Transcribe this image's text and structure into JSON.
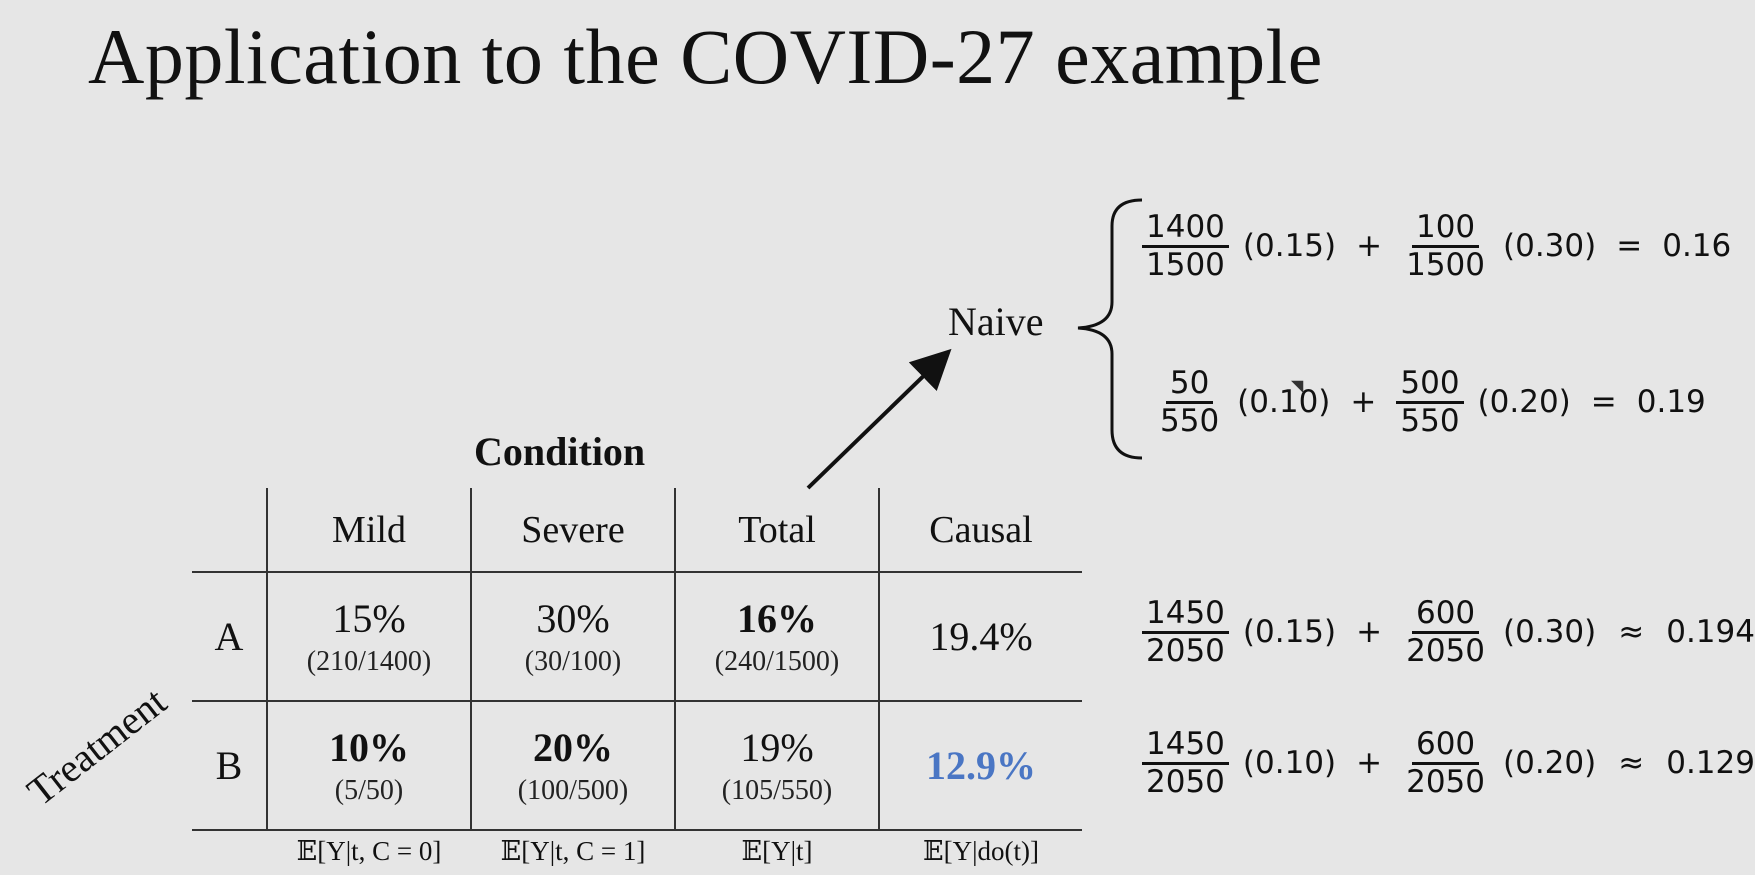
{
  "title": "Application to the COVID-27 example",
  "naive_label": "Naive",
  "naive_equations": [
    {
      "f1_num": "1400",
      "f1_den": "1500",
      "c1": "(0.15)",
      "op": "+",
      "f2_num": "100",
      "f2_den": "1500",
      "c2": "(0.30)",
      "rel": "=",
      "result": "0.16"
    },
    {
      "f1_num": "50",
      "f1_den": "550",
      "c1": "(0.10)",
      "op": "+",
      "f2_num": "500",
      "f2_den": "550",
      "c2": "(0.20)",
      "rel": "=",
      "result": "0.19"
    }
  ],
  "causal_equations": [
    {
      "f1_num": "1450",
      "f1_den": "2050",
      "c1": "(0.15)",
      "op": "+",
      "f2_num": "600",
      "f2_den": "2050",
      "c2": "(0.30)",
      "rel": "≈",
      "result": "0.194"
    },
    {
      "f1_num": "1450",
      "f1_den": "2050",
      "c1": "(0.10)",
      "op": "+",
      "f2_num": "600",
      "f2_den": "2050",
      "c2": "(0.20)",
      "rel": "≈",
      "result": "0.129"
    }
  ],
  "table": {
    "column_group_title": "Condition",
    "row_group_title": "Treatment",
    "columns": [
      "Mild",
      "Severe",
      "Total",
      "Causal"
    ],
    "rows": [
      {
        "label": "A",
        "cells": [
          {
            "pct": "15%",
            "frac": "(210/1400)"
          },
          {
            "pct": "30%",
            "frac": "(30/100)"
          },
          {
            "pct": "16%",
            "frac": "(240/1500)"
          },
          {
            "pct": "19.4%",
            "frac": ""
          }
        ]
      },
      {
        "label": "B",
        "cells": [
          {
            "pct": "10%",
            "frac": "(5/50)"
          },
          {
            "pct": "20%",
            "frac": "(100/500)"
          },
          {
            "pct": "19%",
            "frac": "(105/550)"
          },
          {
            "pct": "12.9%",
            "frac": ""
          }
        ]
      }
    ],
    "expectations": [
      "𝔼[Y|t, C = 0]",
      "𝔼[Y|t, C = 1]",
      "𝔼[Y|t]",
      "𝔼[Y|do(t)]"
    ]
  },
  "colors": {
    "background": "#e6e6e6",
    "highlight": "#4a76c4"
  }
}
